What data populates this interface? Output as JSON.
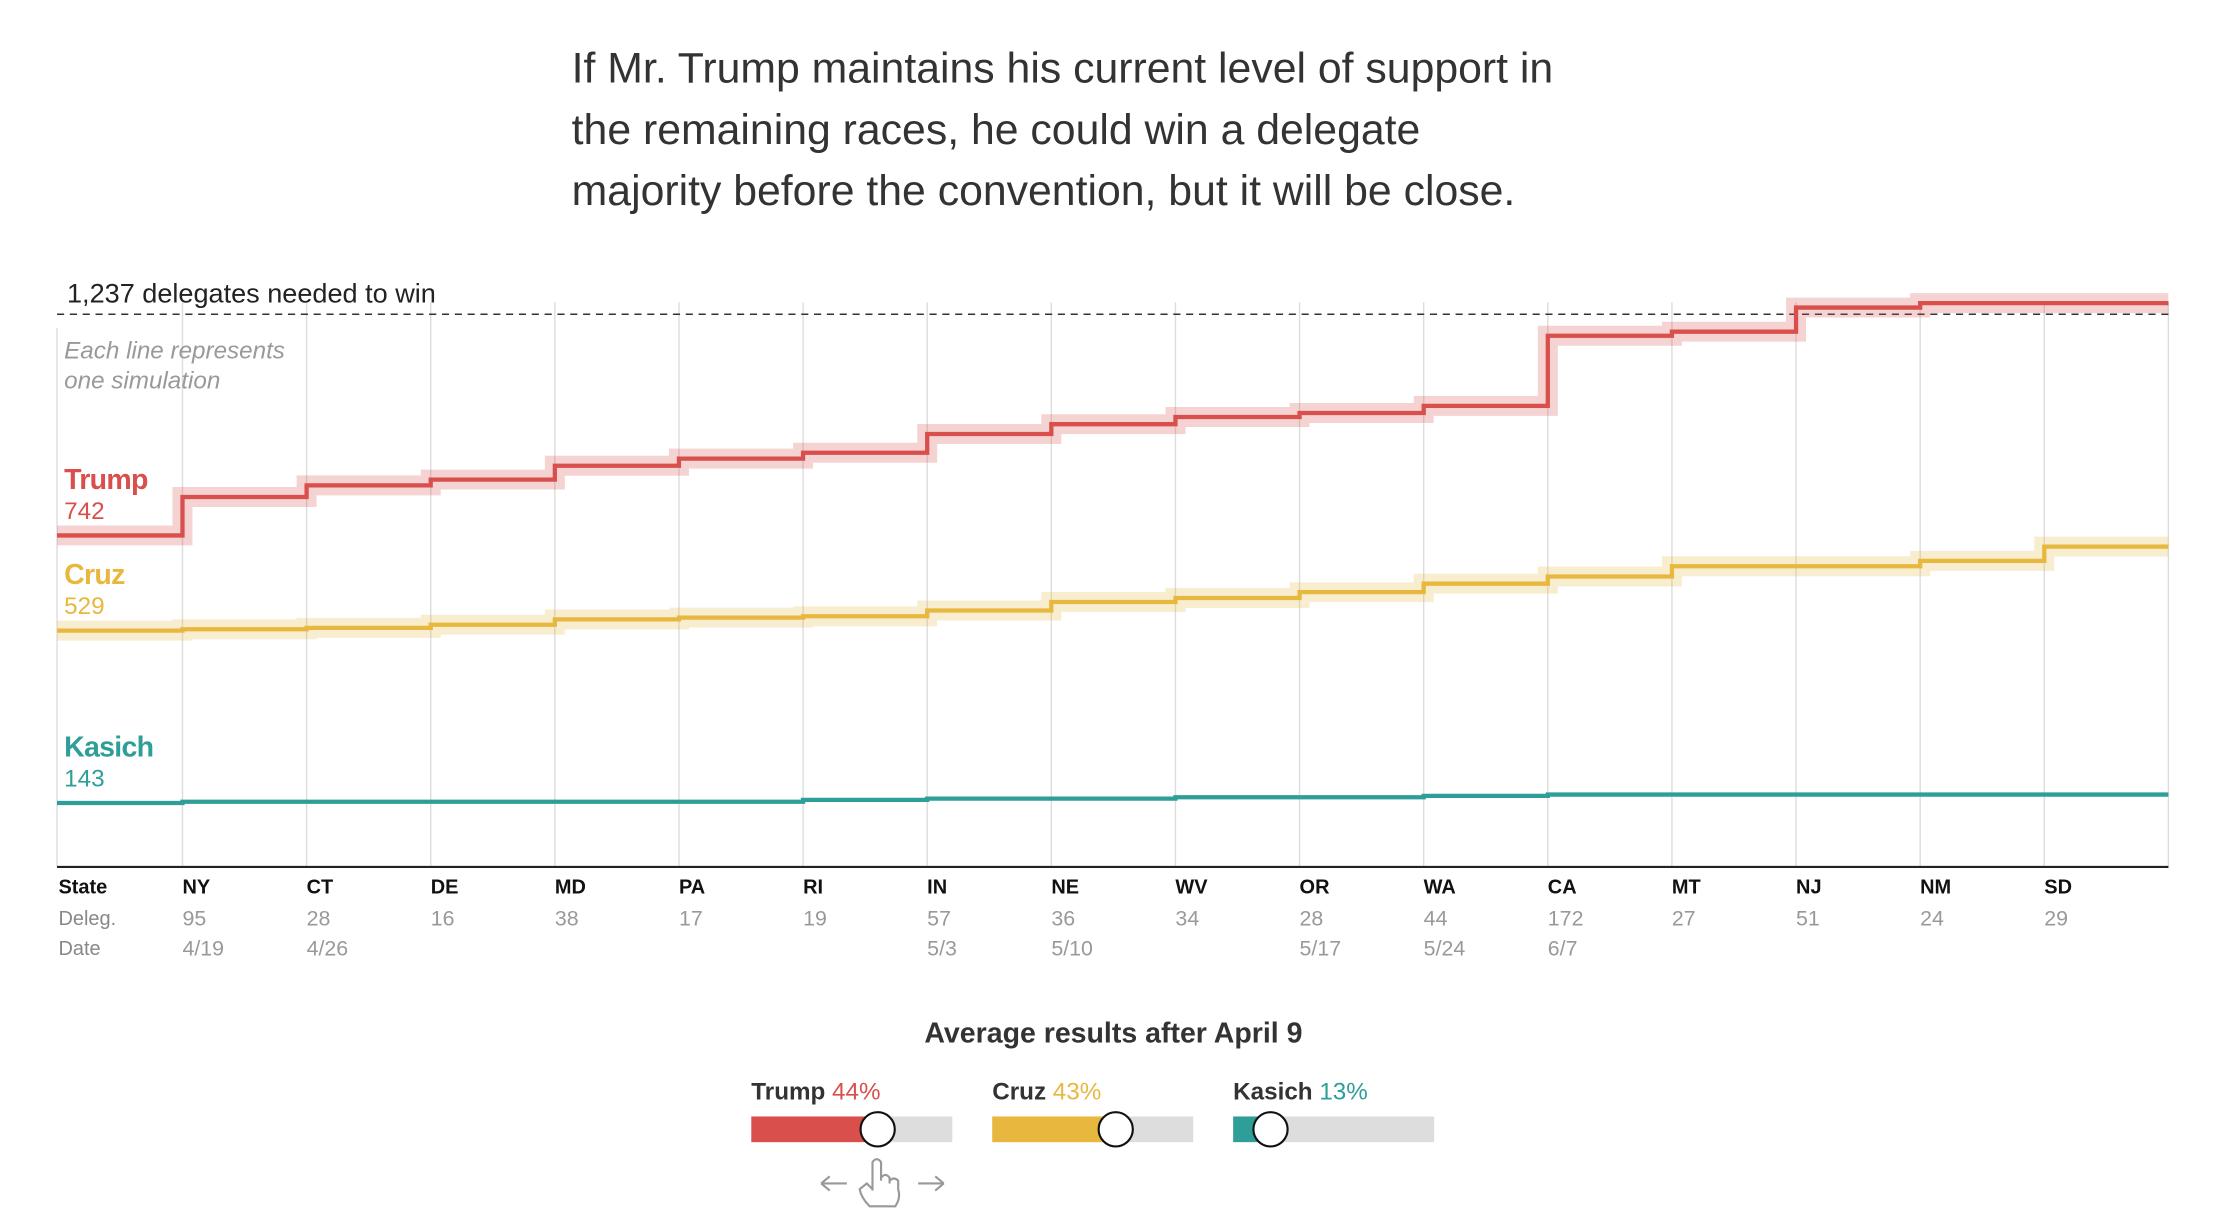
{
  "chart_data": {
    "type": "step",
    "title": [
      "If Mr. Trump maintains his current level of support in",
      "the remaining races, he could win a delegate",
      "majority before the convention, but it will be close."
    ],
    "threshold": {
      "value": 1237,
      "label": "1,237 delegates needed to win"
    },
    "note": [
      "Each line represents",
      "one simulation"
    ],
    "ylim": [
      0,
      1350
    ],
    "row_labels": [
      "State",
      "Deleg.",
      "Date"
    ],
    "categories": [
      "NY",
      "CT",
      "DE",
      "MD",
      "PA",
      "RI",
      "IN",
      "NE",
      "WV",
      "OR",
      "WA",
      "CA",
      "MT",
      "NJ",
      "NM",
      "SD"
    ],
    "delegates": [
      95,
      28,
      16,
      38,
      17,
      19,
      57,
      36,
      34,
      28,
      44,
      172,
      27,
      51,
      24,
      29
    ],
    "dates": [
      "4/19",
      "4/26",
      null,
      null,
      null,
      null,
      "5/3",
      "5/10",
      null,
      "5/17",
      "5/24",
      "6/7",
      null,
      null,
      null,
      null
    ],
    "series": [
      {
        "name": "Trump",
        "color": "#d94f4c",
        "start": 742,
        "values": [
          828,
          854,
          867,
          898,
          914,
          927,
          969,
          991,
          1007,
          1016,
          1032,
          1189,
          1198,
          1252,
          1262,
          1262
        ]
      },
      {
        "name": "Cruz",
        "color": "#e8b83e",
        "start": 529,
        "values": [
          532,
          535,
          542,
          554,
          558,
          561,
          574,
          593,
          602,
          615,
          634,
          650,
          673,
          673,
          685,
          717
        ]
      },
      {
        "name": "Kasich",
        "color": "#2e9e98",
        "start": 143,
        "values": [
          146,
          146,
          146,
          146,
          146,
          150,
          153,
          153,
          156,
          156,
          159,
          162,
          162,
          162,
          162,
          162
        ]
      }
    ],
    "controls": {
      "title": "Average results after April 9",
      "slider_range": [
        0,
        70
      ],
      "sliders": [
        {
          "name": "Trump",
          "value": 44,
          "value_label": "44%"
        },
        {
          "name": "Cruz",
          "value": 43,
          "value_label": "43%"
        },
        {
          "name": "Kasich",
          "value": 13,
          "value_label": "13%"
        }
      ]
    }
  }
}
